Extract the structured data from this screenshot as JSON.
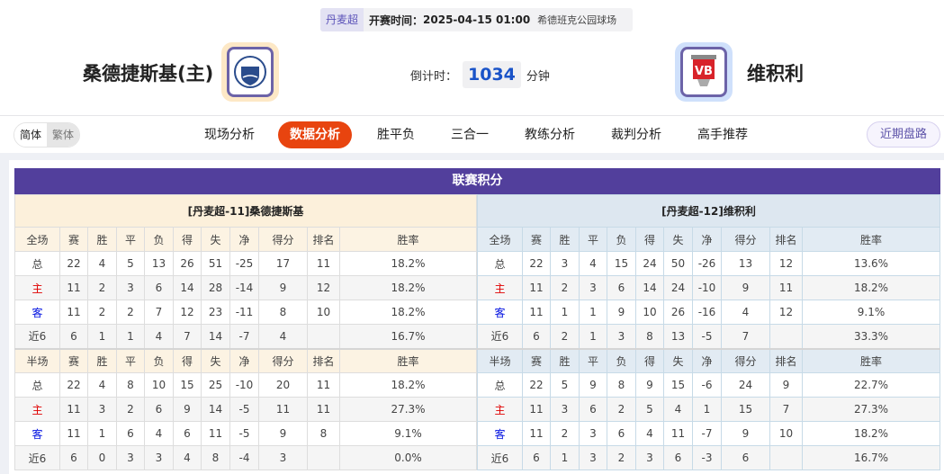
{
  "match": {
    "league": "丹麦超",
    "time_label": "开赛时间：",
    "time": "2025-04-15 01:00",
    "venue": "希德班克公园球场"
  },
  "home": {
    "name": "桑德捷斯基(主)",
    "table_title": "[丹麦超-11]桑德捷斯基"
  },
  "away": {
    "name": "维积利",
    "table_title": "[丹麦超-12]维积利"
  },
  "countdown": {
    "label": "倒计时：",
    "value": "1034",
    "unit": "分钟"
  },
  "lang": {
    "simplified": "简体",
    "traditional": "繁体"
  },
  "tabs": [
    "现场分析",
    "数据分析",
    "胜平负",
    "三合一",
    "教练分析",
    "裁判分析",
    "高手推荐"
  ],
  "active_tab": "数据分析",
  "recent_button": "近期盘路",
  "section_title": "联赛积分",
  "full_header": [
    "全场",
    "赛",
    "胜",
    "平",
    "负",
    "得",
    "失",
    "净",
    "得分",
    "排名",
    "胜率"
  ],
  "half_header": [
    "半场",
    "赛",
    "胜",
    "平",
    "负",
    "得",
    "失",
    "净",
    "得分",
    "排名",
    "胜率"
  ],
  "home_full": [
    [
      "总",
      "22",
      "4",
      "5",
      "13",
      "26",
      "51",
      "-25",
      "17",
      "11",
      "18.2%"
    ],
    [
      "主",
      "11",
      "2",
      "3",
      "6",
      "14",
      "28",
      "-14",
      "9",
      "12",
      "18.2%"
    ],
    [
      "客",
      "11",
      "2",
      "2",
      "7",
      "12",
      "23",
      "-11",
      "8",
      "10",
      "18.2%"
    ],
    [
      "近6",
      "6",
      "1",
      "1",
      "4",
      "7",
      "14",
      "-7",
      "4",
      "",
      "16.7%"
    ]
  ],
  "home_half": [
    [
      "总",
      "22",
      "4",
      "8",
      "10",
      "15",
      "25",
      "-10",
      "20",
      "11",
      "18.2%"
    ],
    [
      "主",
      "11",
      "3",
      "2",
      "6",
      "9",
      "14",
      "-5",
      "11",
      "11",
      "27.3%"
    ],
    [
      "客",
      "11",
      "1",
      "6",
      "4",
      "6",
      "11",
      "-5",
      "9",
      "8",
      "9.1%"
    ],
    [
      "近6",
      "6",
      "0",
      "3",
      "3",
      "4",
      "8",
      "-4",
      "3",
      "",
      "0.0%"
    ]
  ],
  "away_full": [
    [
      "总",
      "22",
      "3",
      "4",
      "15",
      "24",
      "50",
      "-26",
      "13",
      "12",
      "13.6%"
    ],
    [
      "主",
      "11",
      "2",
      "3",
      "6",
      "14",
      "24",
      "-10",
      "9",
      "11",
      "18.2%"
    ],
    [
      "客",
      "11",
      "1",
      "1",
      "9",
      "10",
      "26",
      "-16",
      "4",
      "12",
      "9.1%"
    ],
    [
      "近6",
      "6",
      "2",
      "1",
      "3",
      "8",
      "13",
      "-5",
      "7",
      "",
      "33.3%"
    ]
  ],
  "away_half": [
    [
      "总",
      "22",
      "5",
      "9",
      "8",
      "9",
      "15",
      "-6",
      "24",
      "9",
      "22.7%"
    ],
    [
      "主",
      "11",
      "3",
      "6",
      "2",
      "5",
      "4",
      "1",
      "15",
      "7",
      "27.3%"
    ],
    [
      "客",
      "11",
      "2",
      "3",
      "6",
      "4",
      "11",
      "-7",
      "9",
      "10",
      "18.2%"
    ],
    [
      "近6",
      "6",
      "1",
      "3",
      "2",
      "3",
      "6",
      "-3",
      "6",
      "",
      "16.7%"
    ]
  ],
  "colors": {
    "header": "#523f9c",
    "active_tab": "#e8440f",
    "home_label": "#e00000",
    "away_label": "#0010e0"
  }
}
